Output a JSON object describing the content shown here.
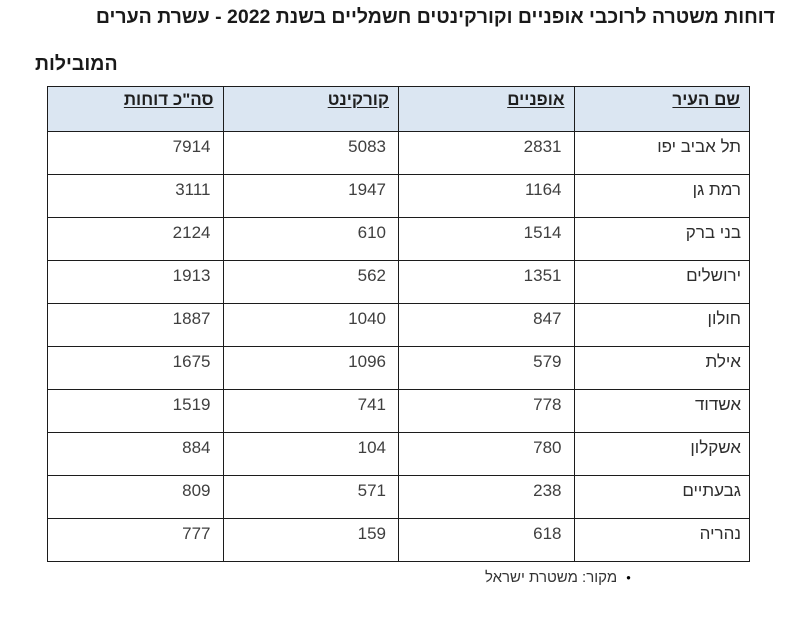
{
  "title": {
    "line1": "דוחות משטרה לרוכבי אופניים וקורקינטים חשמליים בשנת 2022 - עשרת הערים",
    "line2": "המובילות"
  },
  "table": {
    "headers": [
      "שם העיר",
      "אופניים",
      "קורקינט",
      "סה\"כ דוחות"
    ],
    "rows": [
      {
        "city": "תל אביב יפו",
        "bikes": "2831",
        "scooter": "5083",
        "total": "7914"
      },
      {
        "city": "רמת גן",
        "bikes": "1164",
        "scooter": "1947",
        "total": "3111"
      },
      {
        "city": "בני ברק",
        "bikes": "1514",
        "scooter": "610",
        "total": "2124"
      },
      {
        "city": "ירושלים",
        "bikes": "1351",
        "scooter": "562",
        "total": "1913"
      },
      {
        "city": "חולון",
        "bikes": "847",
        "scooter": "1040",
        "total": "1887"
      },
      {
        "city": "אילת",
        "bikes": "579",
        "scooter": "1096",
        "total": "1675"
      },
      {
        "city": "אשדוד",
        "bikes": "778",
        "scooter": "741",
        "total": "1519"
      },
      {
        "city": "אשקלון",
        "bikes": "780",
        "scooter": "104",
        "total": "884"
      },
      {
        "city": "גבעתיים",
        "bikes": "238",
        "scooter": "571",
        "total": "809"
      },
      {
        "city": "נהריה",
        "bikes": "618",
        "scooter": "159",
        "total": "777"
      }
    ]
  },
  "footer": {
    "bullet": "●",
    "source": "מקור: משטרת ישראל"
  },
  "colors": {
    "header_bg": "#dbe6f2",
    "border": "#1c1c1c",
    "title_color": "#1a1a1a"
  }
}
